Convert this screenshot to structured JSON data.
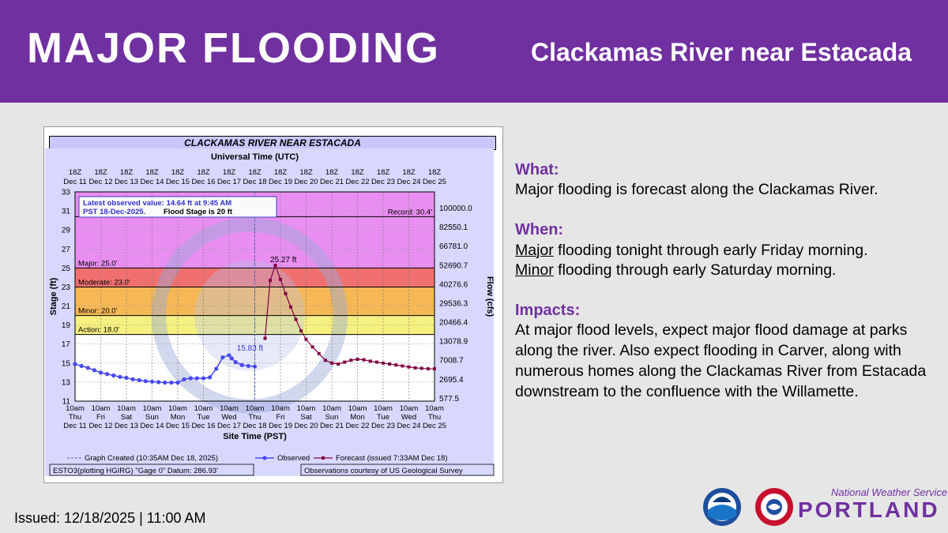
{
  "banner": {
    "headline": "MAJOR FLOODING",
    "location": "Clackamas River near Estacada",
    "color": "#7030a0"
  },
  "chart_data": {
    "type": "line",
    "title": "CLACKAMAS RIVER NEAR ESTACADA",
    "top_axis_title": "Universal Time (UTC)",
    "bottom_axis_title": "Site Time (PST)",
    "ylabel": "Stage (ft)",
    "ylabel_right": "Flow (cfs)",
    "ylim": [
      11,
      33
    ],
    "xlim": [
      0,
      14
    ],
    "y_ticks": [
      "11",
      "13",
      "15",
      "17",
      "19",
      "21",
      "23",
      "25",
      "27",
      "29",
      "31",
      "33"
    ],
    "flow_ticks": [
      {
        "stage": 11.3,
        "label": "577.5"
      },
      {
        "stage": 13.3,
        "label": "2695.4"
      },
      {
        "stage": 15.3,
        "label": "7008.7"
      },
      {
        "stage": 17.3,
        "label": "13078.9"
      },
      {
        "stage": 19.3,
        "label": "20466.4"
      },
      {
        "stage": 21.3,
        "label": "29536.3"
      },
      {
        "stage": 23.3,
        "label": "40276.6"
      },
      {
        "stage": 25.3,
        "label": "52690.7"
      },
      {
        "stage": 27.3,
        "label": "66781.0"
      },
      {
        "stage": 29.3,
        "label": "82550.1"
      },
      {
        "stage": 31.3,
        "label": "100000.0"
      }
    ],
    "top_ticks": [
      {
        "hour": "18Z",
        "date": "Dec 11"
      },
      {
        "hour": "18Z",
        "date": "Dec 12"
      },
      {
        "hour": "18Z",
        "date": "Dec 13"
      },
      {
        "hour": "18Z",
        "date": "Dec 14"
      },
      {
        "hour": "18Z",
        "date": "Dec 15"
      },
      {
        "hour": "18Z",
        "date": "Dec 16"
      },
      {
        "hour": "18Z",
        "date": "Dec 17"
      },
      {
        "hour": "18Z",
        "date": "Dec 18"
      },
      {
        "hour": "18Z",
        "date": "Dec 19"
      },
      {
        "hour": "18Z",
        "date": "Dec 20"
      },
      {
        "hour": "18Z",
        "date": "Dec 21"
      },
      {
        "hour": "18Z",
        "date": "Dec 22"
      },
      {
        "hour": "18Z",
        "date": "Dec 23"
      },
      {
        "hour": "18Z",
        "date": "Dec 24"
      },
      {
        "hour": "18Z",
        "date": "Dec 25"
      }
    ],
    "bottom_ticks": [
      {
        "time": "10am",
        "day": "Thu",
        "date": "Dec 11"
      },
      {
        "time": "10am",
        "day": "Fri",
        "date": "Dec 12"
      },
      {
        "time": "10am",
        "day": "Sat",
        "date": "Dec 13"
      },
      {
        "time": "10am",
        "day": "Sun",
        "date": "Dec 14"
      },
      {
        "time": "10am",
        "day": "Mon",
        "date": "Dec 15"
      },
      {
        "time": "10am",
        "day": "Tue",
        "date": "Dec 16"
      },
      {
        "time": "10am",
        "day": "Wed",
        "date": "Dec 17"
      },
      {
        "time": "10am",
        "day": "Thu",
        "date": "Dec 18"
      },
      {
        "time": "10am",
        "day": "Fri",
        "date": "Dec 19"
      },
      {
        "time": "10am",
        "day": "Sat",
        "date": "Dec 20"
      },
      {
        "time": "10am",
        "day": "Sun",
        "date": "Dec 21"
      },
      {
        "time": "10am",
        "day": "Mon",
        "date": "Dec 22"
      },
      {
        "time": "10am",
        "day": "Tue",
        "date": "Dec 23"
      },
      {
        "time": "10am",
        "day": "Wed",
        "date": "Dec 24"
      },
      {
        "time": "10am",
        "day": "Thu",
        "date": "Dec 25"
      }
    ],
    "flood_categories": [
      {
        "name": "Action",
        "label": "Action: 18.0'",
        "stage": 18.0
      },
      {
        "name": "Minor",
        "label": "Minor: 20.0'",
        "stage": 20.0
      },
      {
        "name": "Moderate",
        "label": "Moderate: 23.0'",
        "stage": 23.0
      },
      {
        "name": "Major",
        "label": "Major: 25.0'",
        "stage": 25.0
      }
    ],
    "record": {
      "label": "Record: 30.4'",
      "stage": 30.4
    },
    "bands": [
      {
        "from": 11,
        "to": 18,
        "color": "#ffffff"
      },
      {
        "from": 18,
        "to": 20,
        "color": "#f5f080"
      },
      {
        "from": 20,
        "to": 23,
        "color": "#f5b855"
      },
      {
        "from": 23,
        "to": 25,
        "color": "#f07070"
      },
      {
        "from": 25,
        "to": 33,
        "color": "#e88ef0"
      }
    ],
    "observed": {
      "name": "Observed",
      "color": "#4848f0",
      "x": [
        0.0,
        0.25,
        0.5,
        0.75,
        1.0,
        1.25,
        1.5,
        1.75,
        2.0,
        2.25,
        2.5,
        2.75,
        3.0,
        3.25,
        3.5,
        3.75,
        4.0,
        4.25,
        4.5,
        4.75,
        5.0,
        5.25,
        5.5,
        5.75,
        6.0,
        6.1,
        6.25,
        6.5,
        6.75,
        7.0
      ],
      "y": [
        14.9,
        14.7,
        14.5,
        14.25,
        14.0,
        13.85,
        13.7,
        13.55,
        13.45,
        13.3,
        13.2,
        13.1,
        13.05,
        13.0,
        12.95,
        12.95,
        12.95,
        13.3,
        13.4,
        13.4,
        13.4,
        13.5,
        14.4,
        15.6,
        15.83,
        15.5,
        15.1,
        14.8,
        14.7,
        14.64
      ]
    },
    "forecast": {
      "name": "Forecast (issued 7:33AM Dec 18)",
      "color": "#800040",
      "x": [
        7.4,
        7.6,
        7.8,
        8.0,
        8.2,
        8.4,
        8.6,
        8.8,
        9.0,
        9.25,
        9.5,
        9.75,
        10.0,
        10.25,
        10.5,
        10.75,
        11.0,
        11.25,
        11.5,
        11.75,
        12.0,
        12.25,
        12.5,
        12.75,
        13.0,
        13.25,
        13.5,
        13.75,
        14.0
      ],
      "y": [
        17.6,
        23.7,
        25.27,
        23.8,
        22.3,
        20.9,
        19.6,
        18.4,
        17.5,
        16.7,
        16.0,
        15.3,
        15.0,
        14.9,
        15.1,
        15.3,
        15.4,
        15.35,
        15.2,
        15.1,
        15.0,
        14.9,
        14.8,
        14.7,
        14.6,
        14.5,
        14.45,
        14.4,
        14.4
      ]
    },
    "labels": {
      "observed_peak": "15.83 ft",
      "forecast_peak": "25.27 ft",
      "latest_line1": "Latest observed value: 14.64 ft at 9:45 AM",
      "latest_line2": "PST 18-Dec-2025.",
      "flood_stage": "Flood Stage is 20 ft"
    },
    "legend": {
      "created": "Graph Created (10:35AM Dec 18, 2025)",
      "observed": "Observed",
      "forecast": "Forecast (issued 7:33AM Dec 18)"
    },
    "footer_left": "ESTO3(plotting HGIRG) \"Gage 0\" Datum: 286.93'",
    "footer_right": "Observations courtesy of US Geological Survey"
  },
  "info": {
    "what_heading": "What:",
    "what_text": "Major flooding is forecast along the Clackamas River.",
    "when_heading": "When:",
    "when_1_emph": "Major",
    "when_1_rest": " flooding tonight through early Friday morning.",
    "when_2_emph": "Minor",
    "when_2_rest": " flooding through early Saturday morning.",
    "impacts_heading": "Impacts:",
    "impacts_text": "At major flood levels, expect major flood damage at parks along the river. Also expect flooding in Carver, along with numerous homes along the Clackamas River from Estacada downstream to the confluence with the Willamette."
  },
  "footer": {
    "issued": "Issued: 12/18/2025 | 11:00 AM",
    "nws_script": "National Weather Service",
    "portland": "PORTLAND"
  }
}
